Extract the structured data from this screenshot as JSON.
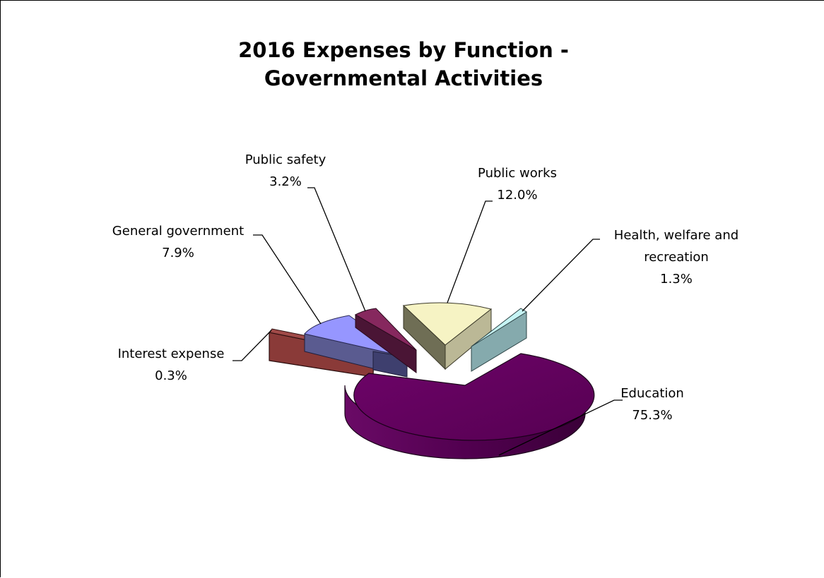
{
  "chart_data": {
    "type": "pie",
    "title_lines": [
      "2016 Expenses by Function -",
      "Governmental Activities"
    ],
    "slices": [
      {
        "name": "Education",
        "value": 75.3,
        "label": "75.3%",
        "color": "#62005e",
        "color_side": "#420040"
      },
      {
        "name": "Health, welfare and recreation",
        "value": 1.3,
        "label": "1.3%",
        "color": "#c6f4f4",
        "color_side": "#85aaad"
      },
      {
        "name": "Public works",
        "value": 12.0,
        "label": "12.0%",
        "color": "#f6f3c4",
        "color_side": "#bbb896"
      },
      {
        "name": "Public safety",
        "value": 3.2,
        "label": "3.2%",
        "color": "#86285e",
        "color_side": "#5a1a40"
      },
      {
        "name": "General government",
        "value": 7.9,
        "label": "7.9%",
        "color": "#9696ff",
        "color_side": "#46477c"
      },
      {
        "name": "Interest expense",
        "value": 0.3,
        "label": "0.3%",
        "color": "#8a3a38",
        "color_side": "#6e302e"
      }
    ],
    "legend": "none",
    "data_labels": "outside with leader lines"
  }
}
